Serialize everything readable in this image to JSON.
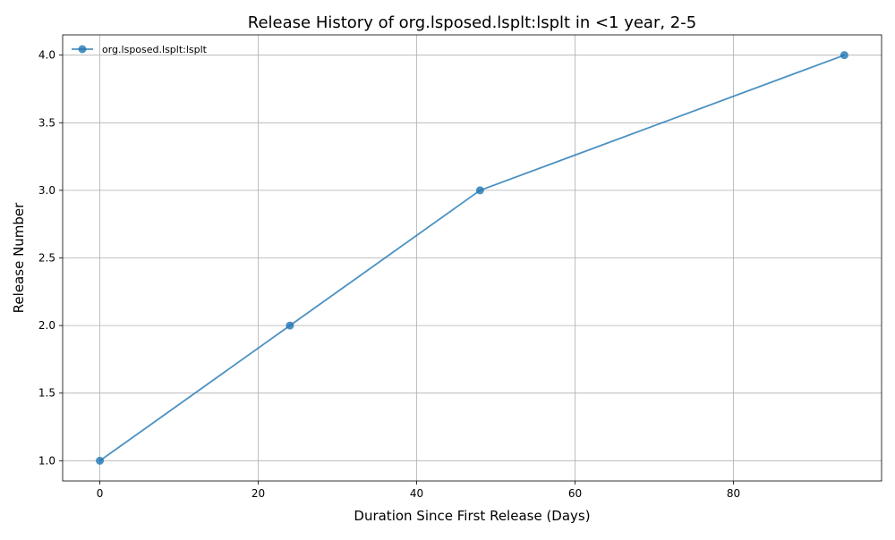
{
  "chart_data": {
    "type": "line",
    "title": "Release History of org.lsposed.lsplt:lsplt in <1 year, 2-5",
    "xlabel": "Duration Since First Release (Days)",
    "ylabel": "Release Number",
    "xlim": [
      -4.7,
      98.7
    ],
    "ylim": [
      0.85,
      4.15
    ],
    "xticks": [
      0,
      20,
      40,
      60,
      80
    ],
    "yticks": [
      1.0,
      1.5,
      2.0,
      2.5,
      3.0,
      3.5,
      4.0
    ],
    "xtick_labels": [
      "0",
      "20",
      "40",
      "60",
      "80"
    ],
    "ytick_labels": [
      "1.0",
      "1.5",
      "2.0",
      "2.5",
      "3.0",
      "3.5",
      "4.0"
    ],
    "grid": true,
    "legend_position": "upper-left",
    "series": [
      {
        "name": "org.lsposed.lsplt:lsplt",
        "color": "#1f77b4",
        "x": [
          0,
          24,
          48,
          94
        ],
        "y": [
          1,
          2,
          3,
          4
        ]
      }
    ]
  }
}
